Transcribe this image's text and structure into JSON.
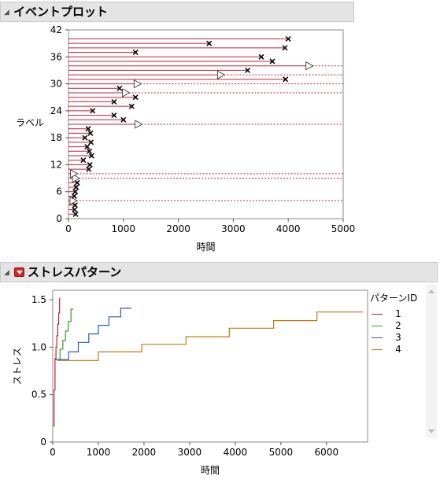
{
  "event_plot": {
    "title": "イベントプロット",
    "xlabel": "時間",
    "ylabel": "ラベル",
    "x_ticks": [
      "0",
      "1000",
      "2000",
      "3000",
      "4000",
      "5000"
    ],
    "y_ticks": [
      "0",
      "6",
      "12",
      "18",
      "24",
      "30",
      "36",
      "42"
    ],
    "line_color": "#c0203a",
    "events": [
      {
        "y": 1,
        "t": 130,
        "censored": false
      },
      {
        "y": 2,
        "t": 110,
        "censored": false
      },
      {
        "y": 3,
        "t": 120,
        "censored": false
      },
      {
        "y": 4,
        "t": 85,
        "censored": true
      },
      {
        "y": 5,
        "t": 105,
        "censored": false
      },
      {
        "y": 6,
        "t": 125,
        "censored": false
      },
      {
        "y": 7,
        "t": 140,
        "censored": false
      },
      {
        "y": 8,
        "t": 160,
        "censored": false
      },
      {
        "y": 9,
        "t": 130,
        "censored": true
      },
      {
        "y": 10,
        "t": 95,
        "censored": true
      },
      {
        "y": 11,
        "t": 370,
        "censored": false
      },
      {
        "y": 12,
        "t": 390,
        "censored": false
      },
      {
        "y": 13,
        "t": 270,
        "censored": false
      },
      {
        "y": 14,
        "t": 420,
        "censored": false
      },
      {
        "y": 15,
        "t": 380,
        "censored": false
      },
      {
        "y": 16,
        "t": 340,
        "censored": false
      },
      {
        "y": 17,
        "t": 410,
        "censored": false
      },
      {
        "y": 18,
        "t": 300,
        "censored": false
      },
      {
        "y": 19,
        "t": 400,
        "censored": false
      },
      {
        "y": 20,
        "t": 360,
        "censored": false
      },
      {
        "y": 21,
        "t": 1270,
        "censored": true
      },
      {
        "y": 22,
        "t": 1000,
        "censored": false
      },
      {
        "y": 23,
        "t": 830,
        "censored": false
      },
      {
        "y": 24,
        "t": 440,
        "censored": false
      },
      {
        "y": 25,
        "t": 1150,
        "censored": false
      },
      {
        "y": 26,
        "t": 830,
        "censored": false
      },
      {
        "y": 27,
        "t": 1220,
        "censored": false
      },
      {
        "y": 28,
        "t": 1040,
        "censored": true
      },
      {
        "y": 29,
        "t": 930,
        "censored": false
      },
      {
        "y": 30,
        "t": 1250,
        "censored": true
      },
      {
        "y": 31,
        "t": 3950,
        "censored": false
      },
      {
        "y": 32,
        "t": 2770,
        "censored": true
      },
      {
        "y": 33,
        "t": 3260,
        "censored": false
      },
      {
        "y": 34,
        "t": 4380,
        "censored": true
      },
      {
        "y": 35,
        "t": 3710,
        "censored": false
      },
      {
        "y": 36,
        "t": 3510,
        "censored": false
      },
      {
        "y": 37,
        "t": 1220,
        "censored": false
      },
      {
        "y": 38,
        "t": 3940,
        "censored": false
      },
      {
        "y": 39,
        "t": 2560,
        "censored": false
      },
      {
        "y": 40,
        "t": 4000,
        "censored": false
      }
    ]
  },
  "stress_pattern": {
    "title": "ストレスパターン",
    "xlabel": "時間",
    "ylabel": "ストレス",
    "x_ticks": [
      "0",
      "1000",
      "2000",
      "3000",
      "4000",
      "5000",
      "6000"
    ],
    "y_ticks": [
      "0",
      "0.5",
      "1.0",
      "1.5"
    ],
    "legend_title": "パターンID",
    "series": [
      {
        "name": "1",
        "color": "#c0203a",
        "points": [
          [
            0,
            0.17
          ],
          [
            30,
            0.17
          ],
          [
            30,
            0.55
          ],
          [
            50,
            0.55
          ],
          [
            50,
            0.88
          ],
          [
            70,
            0.88
          ],
          [
            70,
            1.0
          ],
          [
            90,
            1.0
          ],
          [
            90,
            1.12
          ],
          [
            110,
            1.12
          ],
          [
            110,
            1.24
          ],
          [
            130,
            1.24
          ],
          [
            130,
            1.36
          ],
          [
            150,
            1.36
          ],
          [
            150,
            1.52
          ]
        ]
      },
      {
        "name": "2",
        "color": "#3a9a2a",
        "points": [
          [
            60,
            0.87
          ],
          [
            160,
            0.87
          ],
          [
            160,
            0.98
          ],
          [
            220,
            0.98
          ],
          [
            220,
            1.07
          ],
          [
            280,
            1.07
          ],
          [
            280,
            1.17
          ],
          [
            340,
            1.17
          ],
          [
            340,
            1.27
          ],
          [
            400,
            1.27
          ],
          [
            400,
            1.4
          ],
          [
            450,
            1.4
          ]
        ]
      },
      {
        "name": "3",
        "color": "#2a5dbf",
        "points": [
          [
            80,
            0.87
          ],
          [
            350,
            0.87
          ],
          [
            350,
            0.95
          ],
          [
            560,
            0.95
          ],
          [
            560,
            1.05
          ],
          [
            790,
            1.05
          ],
          [
            790,
            1.14
          ],
          [
            1000,
            1.14
          ],
          [
            1000,
            1.23
          ],
          [
            1230,
            1.23
          ],
          [
            1230,
            1.32
          ],
          [
            1490,
            1.32
          ],
          [
            1490,
            1.41
          ],
          [
            1720,
            1.41
          ]
        ]
      },
      {
        "name": "4",
        "color": "#c07a14",
        "points": [
          [
            100,
            0.86
          ],
          [
            1000,
            0.86
          ],
          [
            1000,
            0.95
          ],
          [
            1950,
            0.95
          ],
          [
            1950,
            1.03
          ],
          [
            2920,
            1.03
          ],
          [
            2920,
            1.11
          ],
          [
            3870,
            1.11
          ],
          [
            3870,
            1.2
          ],
          [
            4840,
            1.2
          ],
          [
            4840,
            1.28
          ],
          [
            5790,
            1.28
          ],
          [
            5790,
            1.37
          ],
          [
            6800,
            1.37
          ]
        ]
      }
    ]
  }
}
